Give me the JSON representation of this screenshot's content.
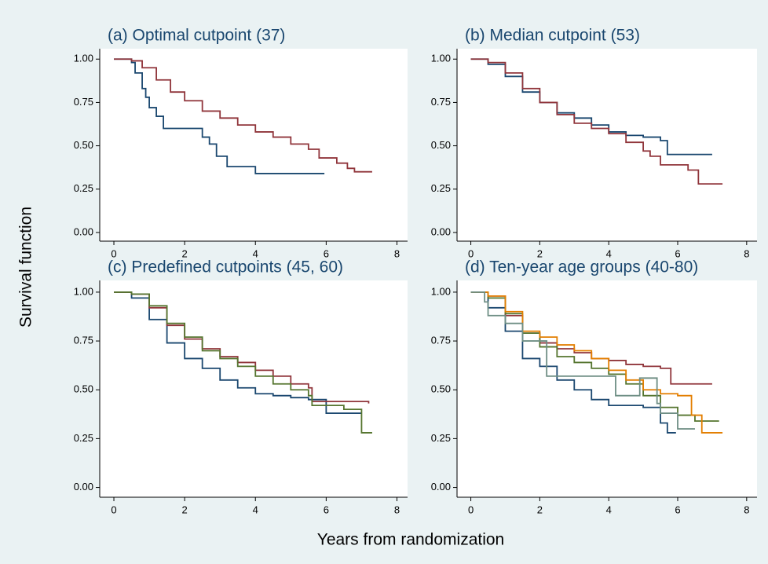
{
  "y_label": "Survival function",
  "x_label": "Years from randomization",
  "chart_data": [
    {
      "type": "line",
      "step": "post",
      "title": "(a) Optimal cutpoint (37)",
      "xlim": [
        -0.4,
        8.3
      ],
      "ylim": [
        -0.05,
        1.06
      ],
      "xticks": [
        0,
        2,
        4,
        6,
        8
      ],
      "yticks": [
        {
          "value": 0,
          "label": "0.00"
        },
        {
          "value": 0.25,
          "label": "0.25"
        },
        {
          "value": 0.5,
          "label": "0.50"
        },
        {
          "value": 0.75,
          "label": "0.75"
        },
        {
          "value": 1,
          "label": "1.00"
        }
      ],
      "series": [
        {
          "color": "#1a476f",
          "x": [
            0,
            0.5,
            0.6,
            0.8,
            0.9,
            1.0,
            1.2,
            1.4,
            2.5,
            2.7,
            2.9,
            3.2,
            4.0,
            5.95
          ],
          "values": [
            1,
            0.98,
            0.92,
            0.83,
            0.78,
            0.72,
            0.67,
            0.6,
            0.55,
            0.51,
            0.44,
            0.38,
            0.34,
            0.34
          ]
        },
        {
          "color": "#90353b",
          "x": [
            0,
            0.5,
            0.8,
            1.2,
            1.6,
            2.0,
            2.5,
            3.0,
            3.5,
            4.0,
            4.5,
            5.0,
            5.5,
            5.8,
            6.3,
            6.6,
            6.8,
            7.3
          ],
          "values": [
            1,
            0.99,
            0.95,
            0.88,
            0.81,
            0.76,
            0.7,
            0.66,
            0.62,
            0.58,
            0.55,
            0.51,
            0.48,
            0.43,
            0.4,
            0.37,
            0.35,
            0.35
          ]
        }
      ]
    },
    {
      "type": "line",
      "step": "post",
      "title": "(b) Median cutpoint (53)",
      "xlim": [
        -0.4,
        8.3
      ],
      "ylim": [
        -0.05,
        1.06
      ],
      "xticks": [
        0,
        2,
        4,
        6,
        8
      ],
      "yticks": [
        {
          "value": 0,
          "label": "0.00"
        },
        {
          "value": 0.25,
          "label": "0.25"
        },
        {
          "value": 0.5,
          "label": "0.50"
        },
        {
          "value": 0.75,
          "label": "0.75"
        },
        {
          "value": 1,
          "label": "1.00"
        }
      ],
      "series": [
        {
          "color": "#1a476f",
          "x": [
            0,
            0.5,
            1,
            1.5,
            2,
            2.5,
            3,
            3.5,
            4,
            4.5,
            5,
            5.5,
            5.7,
            7.0
          ],
          "values": [
            1,
            0.97,
            0.9,
            0.81,
            0.75,
            0.69,
            0.66,
            0.62,
            0.58,
            0.56,
            0.55,
            0.53,
            0.45,
            0.45
          ]
        },
        {
          "color": "#90353b",
          "x": [
            0,
            0.5,
            1,
            1.5,
            2,
            2.5,
            3,
            3.5,
            4,
            4.5,
            5,
            5.2,
            5.5,
            6.3,
            6.6,
            7.3
          ],
          "values": [
            1,
            0.98,
            0.92,
            0.83,
            0.75,
            0.68,
            0.63,
            0.6,
            0.57,
            0.52,
            0.47,
            0.44,
            0.39,
            0.36,
            0.28,
            0.28
          ]
        }
      ]
    },
    {
      "type": "line",
      "step": "post",
      "title": "(c) Predefined cutpoints (45, 60)",
      "xlim": [
        -0.4,
        8.3
      ],
      "ylim": [
        -0.05,
        1.06
      ],
      "xticks": [
        0,
        2,
        4,
        6,
        8
      ],
      "yticks": [
        {
          "value": 0,
          "label": "0.00"
        },
        {
          "value": 0.25,
          "label": "0.25"
        },
        {
          "value": 0.5,
          "label": "0.50"
        },
        {
          "value": 0.75,
          "label": "0.75"
        },
        {
          "value": 1,
          "label": "1.00"
        }
      ],
      "series": [
        {
          "color": "#1a476f",
          "x": [
            0,
            0.5,
            1,
            1.5,
            2,
            2.5,
            3,
            3.5,
            4,
            4.5,
            5,
            5.5,
            6,
            7
          ],
          "values": [
            1,
            0.97,
            0.86,
            0.74,
            0.66,
            0.61,
            0.55,
            0.51,
            0.48,
            0.47,
            0.46,
            0.45,
            0.38,
            0.38
          ]
        },
        {
          "color": "#90353b",
          "x": [
            0,
            0.5,
            1,
            1.5,
            2,
            2.5,
            3,
            3.5,
            4,
            4.5,
            5,
            5.5,
            5.6,
            7.2
          ],
          "values": [
            1,
            0.99,
            0.92,
            0.83,
            0.76,
            0.71,
            0.67,
            0.64,
            0.6,
            0.57,
            0.53,
            0.51,
            0.44,
            0.43
          ]
        },
        {
          "color": "#55752f",
          "x": [
            0,
            0.5,
            1,
            1.5,
            2,
            2.5,
            3,
            3.5,
            4,
            4.5,
            5,
            5.5,
            5.6,
            6.5,
            7,
            7.3
          ],
          "values": [
            1,
            0.99,
            0.93,
            0.84,
            0.77,
            0.7,
            0.66,
            0.62,
            0.57,
            0.53,
            0.5,
            0.47,
            0.42,
            0.4,
            0.28,
            0.28
          ]
        }
      ]
    },
    {
      "type": "line",
      "step": "post",
      "title": "(d) Ten-year age groups (40-80)",
      "xlim": [
        -0.4,
        8.3
      ],
      "ylim": [
        -0.05,
        1.06
      ],
      "xticks": [
        0,
        2,
        4,
        6,
        8
      ],
      "yticks": [
        {
          "value": 0,
          "label": "0.00"
        },
        {
          "value": 0.25,
          "label": "0.25"
        },
        {
          "value": 0.5,
          "label": "0.50"
        },
        {
          "value": 0.75,
          "label": "0.75"
        },
        {
          "value": 1,
          "label": "1.00"
        }
      ],
      "series": [
        {
          "color": "#1a476f",
          "x": [
            0,
            0.5,
            1,
            1.5,
            2,
            2.5,
            3,
            3.5,
            4,
            5,
            5.5,
            5.7,
            5.95
          ],
          "values": [
            1,
            0.92,
            0.8,
            0.66,
            0.62,
            0.55,
            0.5,
            0.45,
            0.42,
            0.41,
            0.33,
            0.28,
            0.28
          ]
        },
        {
          "color": "#90353b",
          "x": [
            0,
            0.5,
            1,
            1.5,
            2,
            2.5,
            3,
            3.5,
            4,
            4.5,
            5,
            5.5,
            5.8,
            7.0
          ],
          "values": [
            1,
            0.98,
            0.88,
            0.79,
            0.74,
            0.71,
            0.69,
            0.66,
            0.65,
            0.63,
            0.62,
            0.61,
            0.53,
            0.53
          ]
        },
        {
          "color": "#55752f",
          "x": [
            0,
            0.5,
            1,
            1.5,
            2,
            2.5,
            3,
            3.5,
            4,
            4.5,
            5,
            5.5,
            6,
            6.5,
            7.2
          ],
          "values": [
            1,
            0.97,
            0.89,
            0.79,
            0.72,
            0.67,
            0.64,
            0.61,
            0.58,
            0.53,
            0.47,
            0.41,
            0.37,
            0.34,
            0.34
          ]
        },
        {
          "color": "#e37e00",
          "x": [
            0,
            0.5,
            1,
            1.5,
            2,
            2.5,
            3,
            3.5,
            4,
            4.5,
            5,
            5.5,
            6,
            6.4,
            6.7,
            7.3
          ],
          "values": [
            1,
            0.98,
            0.9,
            0.8,
            0.77,
            0.73,
            0.7,
            0.66,
            0.6,
            0.55,
            0.5,
            0.48,
            0.47,
            0.37,
            0.28,
            0.28
          ]
        },
        {
          "color": "#6e8e84",
          "x": [
            0,
            0.4,
            0.5,
            1,
            1.5,
            2.2,
            3.9,
            4.2,
            4.9,
            5.4,
            5.5,
            6.0,
            6.5
          ],
          "values": [
            1,
            0.95,
            0.88,
            0.84,
            0.75,
            0.57,
            0.57,
            0.47,
            0.56,
            0.43,
            0.38,
            0.3,
            0.3
          ]
        }
      ]
    }
  ]
}
